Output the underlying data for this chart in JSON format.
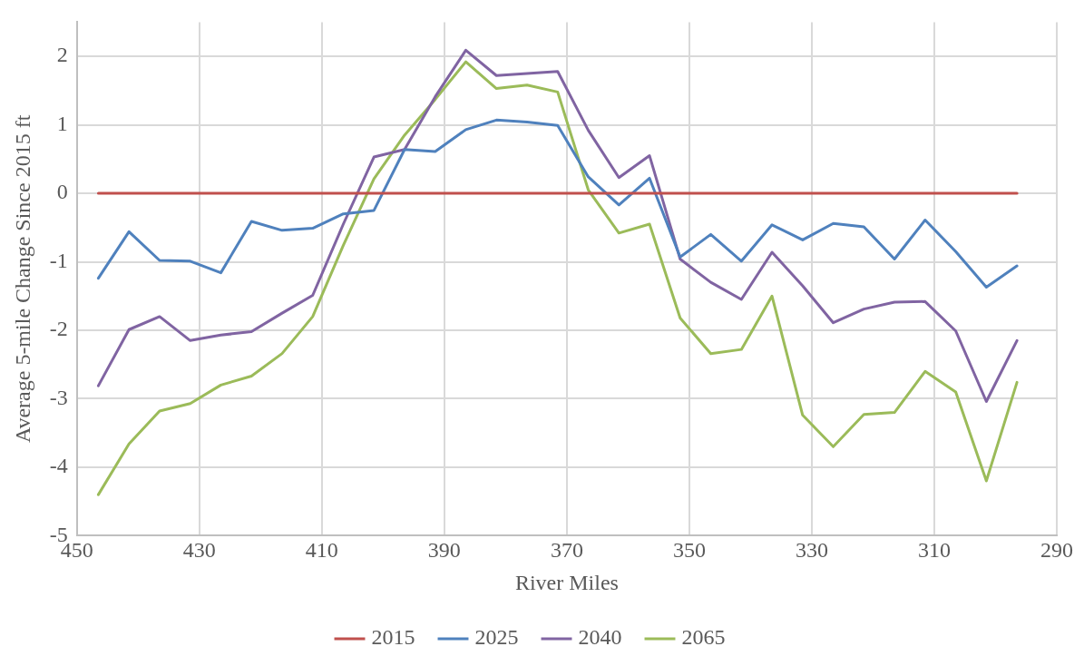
{
  "chart_data": {
    "type": "line",
    "xlabel": "River Miles",
    "ylabel": "Average 5-mile Change Since 2015 ft",
    "x": [
      446.5,
      441.5,
      436.5,
      431.5,
      426.5,
      421.5,
      416.5,
      411.5,
      406.5,
      401.5,
      396.5,
      391.5,
      386.5,
      381.5,
      376.5,
      371.5,
      366.5,
      361.5,
      356.5,
      351.5,
      346.5,
      341.5,
      336.5,
      331.5,
      326.5,
      321.5,
      316.5,
      311.5,
      306.5,
      301.5,
      296.5
    ],
    "series": [
      {
        "name": "2015",
        "color": "#c0504d",
        "values": [
          0,
          0,
          0,
          0,
          0,
          0,
          0,
          0,
          0,
          0,
          0,
          0,
          0,
          0,
          0,
          0,
          0,
          0,
          0,
          0,
          0,
          0,
          0,
          0,
          0,
          0,
          0,
          0,
          0,
          0,
          0
        ]
      },
      {
        "name": "2025",
        "color": "#4f81bd",
        "values": [
          -1.24,
          -0.56,
          -0.98,
          -0.99,
          -1.16,
          -0.41,
          -0.54,
          -0.51,
          -0.3,
          -0.25,
          0.64,
          0.61,
          0.93,
          1.07,
          1.04,
          0.99,
          0.24,
          -0.17,
          0.22,
          -0.93,
          -0.6,
          -0.99,
          -0.46,
          -0.68,
          -0.44,
          -0.49,
          -0.96,
          -0.39,
          -0.85,
          -1.37,
          -1.06
        ]
      },
      {
        "name": "2040",
        "color": "#8064a2",
        "values": [
          -2.81,
          -1.99,
          -1.8,
          -2.15,
          -2.07,
          -2.02,
          -1.75,
          -1.49,
          -0.45,
          0.53,
          0.64,
          1.41,
          2.09,
          1.72,
          1.75,
          1.78,
          0.92,
          0.23,
          0.55,
          -0.96,
          -1.3,
          -1.55,
          -0.86,
          -1.35,
          -1.89,
          -1.69,
          -1.59,
          -1.58,
          -2.01,
          -3.04,
          -2.15
        ]
      },
      {
        "name": "2065",
        "color": "#9bbb59",
        "values": [
          -4.4,
          -3.66,
          -3.18,
          -3.07,
          -2.8,
          -2.67,
          -2.34,
          -1.8,
          -0.76,
          0.21,
          0.85,
          1.37,
          1.92,
          1.53,
          1.58,
          1.48,
          0.05,
          -0.58,
          -0.45,
          -1.82,
          -2.34,
          -2.28,
          -1.5,
          -3.24,
          -3.7,
          -3.23,
          -3.2,
          -2.6,
          -2.9,
          -4.2,
          -2.76
        ]
      }
    ],
    "xlim": [
      450,
      290
    ],
    "xticks": [
      450,
      430,
      410,
      390,
      370,
      350,
      330,
      310,
      290
    ],
    "ylim": [
      -5,
      2.5
    ],
    "yticks": [
      -5,
      -4,
      -3,
      -2,
      -1,
      0,
      1,
      2
    ],
    "grid": true,
    "legend": "bottom",
    "marker": "none",
    "line_style": "solid"
  }
}
